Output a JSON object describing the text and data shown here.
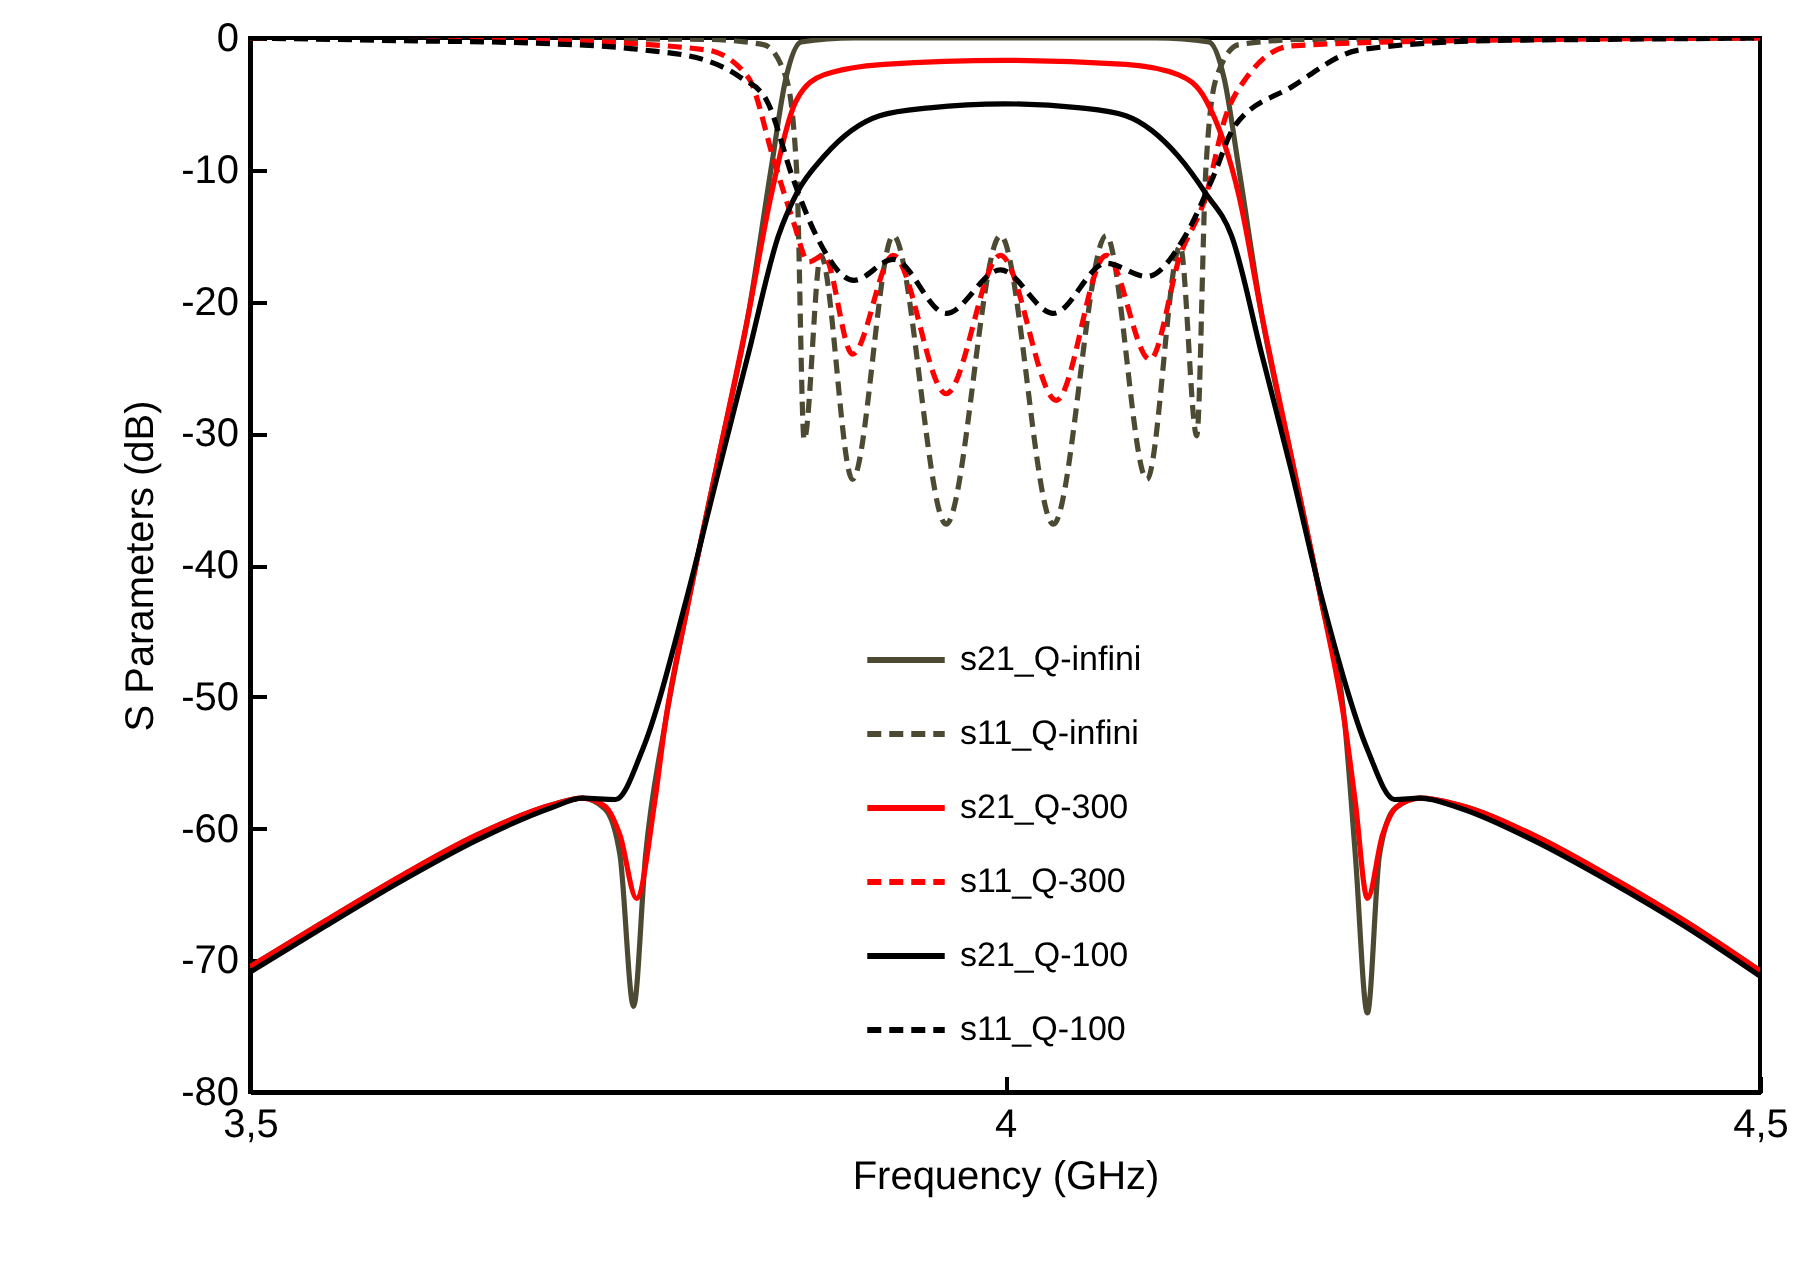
{
  "chart_data": {
    "type": "line",
    "xlabel": "Frequency (GHz)",
    "ylabel": "S Parameters (dB)",
    "xlim": [
      3.5,
      4.5
    ],
    "xticks": [
      {
        "value": 3.5,
        "label": "3,5"
      },
      4,
      {
        "value": 4.5,
        "label": "4,5"
      }
    ],
    "ylim": [
      -80,
      0
    ],
    "yticks": [
      -80,
      -70,
      -60,
      -50,
      -40,
      -30,
      -20,
      -10,
      0
    ],
    "grid": false,
    "legend": "bottom",
    "marker": "none",
    "series": [
      {
        "name": "s21_Q-infini",
        "color": "#4d4a33",
        "line_style": "solid",
        "x": [
          3.5,
          3.55,
          3.6,
          3.65,
          3.7,
          3.72,
          3.735,
          3.745,
          3.754,
          3.762,
          3.775,
          3.79,
          3.81,
          3.83,
          3.845,
          3.855,
          3.865,
          3.9,
          4.0,
          4.1,
          4.135,
          4.145,
          4.155,
          4.17,
          4.19,
          4.21,
          4.225,
          4.232,
          4.24,
          4.248,
          4.258,
          4.275,
          4.3,
          4.35,
          4.4,
          4.45,
          4.5
        ],
        "values": [
          -70.5,
          -67,
          -63.6,
          -60.5,
          -58.2,
          -57.7,
          -58.5,
          -62,
          -73.5,
          -62,
          -52,
          -43,
          -32,
          -21,
          -10,
          -3,
          -0.3,
          0,
          0,
          0,
          -0.3,
          -3,
          -10,
          -21,
          -32,
          -43,
          -52,
          -62,
          -74,
          -62,
          -58.5,
          -57.7,
          -58.2,
          -60.5,
          -63.6,
          -67,
          -70.8
        ]
      },
      {
        "name": "s11_Q-infini",
        "color": "#4d4a33",
        "line_style": "dashed",
        "x": [
          3.5,
          3.8,
          3.84,
          3.855,
          3.862,
          3.867,
          3.878,
          3.899,
          3.926,
          3.961,
          3.997,
          4.032,
          4.067,
          4.094,
          4.116,
          4.127,
          4.133,
          4.14,
          4.155,
          4.2,
          4.5
        ],
        "values": [
          0,
          -0.1,
          -0.5,
          -3,
          -10,
          -30.5,
          -16.5,
          -33.5,
          -15,
          -36.9,
          -15,
          -36.9,
          -15,
          -33.5,
          -15.8,
          -30.2,
          -10,
          -3,
          -0.5,
          -0.1,
          0
        ]
      },
      {
        "name": "s21_Q-300",
        "color": "#ff0000",
        "line_style": "solid",
        "x": [
          3.5,
          3.55,
          3.6,
          3.65,
          3.7,
          3.72,
          3.735,
          3.745,
          3.756,
          3.768,
          3.775,
          3.79,
          3.81,
          3.83,
          3.845,
          3.862,
          3.88,
          3.92,
          4.0,
          4.08,
          4.115,
          4.133,
          4.155,
          4.17,
          4.19,
          4.21,
          4.225,
          4.232,
          4.24,
          4.25,
          4.26,
          4.275,
          4.3,
          4.35,
          4.4,
          4.45,
          4.5
        ],
        "values": [
          -70.5,
          -67,
          -63.6,
          -60.5,
          -58.2,
          -57.7,
          -58.3,
          -60.5,
          -65.3,
          -58,
          -52,
          -43,
          -32,
          -21,
          -12,
          -4.7,
          -2.8,
          -2,
          -1.7,
          -2,
          -2.8,
          -4.7,
          -12,
          -21,
          -32,
          -43,
          -52,
          -58,
          -65.3,
          -60.5,
          -58.3,
          -57.7,
          -58.2,
          -60.5,
          -63.6,
          -67,
          -70.8
        ]
      },
      {
        "name": "s11_Q-300",
        "color": "#ff0000",
        "line_style": "dashed",
        "x": [
          3.5,
          3.7,
          3.802,
          3.83,
          3.847,
          3.86,
          3.87,
          3.88,
          3.899,
          3.926,
          3.961,
          3.997,
          4.034,
          4.067,
          4.096,
          4.116,
          4.133,
          4.146,
          4.16,
          4.19,
          4.3,
          4.5
        ],
        "values": [
          0,
          -0.2,
          -0.9,
          -3,
          -9.3,
          -14,
          -17,
          -16.5,
          -24,
          -16.5,
          -27,
          -16.5,
          -27.5,
          -16.5,
          -24.4,
          -16.5,
          -12,
          -6,
          -3,
          -0.6,
          -0.2,
          0
        ]
      },
      {
        "name": "s21_Q-100",
        "color": "#000000",
        "line_style": "solid",
        "x": [
          3.5,
          3.55,
          3.6,
          3.65,
          3.7,
          3.72,
          3.742,
          3.76,
          3.789,
          3.81,
          3.83,
          3.85,
          3.862,
          3.88,
          3.917,
          3.95,
          4.0,
          4.05,
          4.08,
          4.115,
          4.133,
          4.15,
          4.17,
          4.19,
          4.21,
          4.24,
          4.258,
          4.275,
          4.3,
          4.35,
          4.4,
          4.45,
          4.5
        ],
        "values": [
          -70.9,
          -67.4,
          -64,
          -60.9,
          -58.4,
          -57.7,
          -57.8,
          -54,
          -42.6,
          -33,
          -24,
          -15,
          -11.8,
          -9,
          -5.9,
          -5.3,
          -5,
          -5.3,
          -5.9,
          -9,
          -11.8,
          -15,
          -24,
          -33,
          -42.6,
          -54,
          -57.8,
          -57.7,
          -58.4,
          -60.9,
          -64,
          -67.4,
          -71.2
        ]
      },
      {
        "name": "s11_Q-100",
        "color": "#000000",
        "line_style": "dashed",
        "x": [
          3.5,
          3.6,
          3.69,
          3.76,
          3.802,
          3.825,
          3.842,
          3.86,
          3.875,
          3.9,
          3.926,
          3.961,
          3.997,
          4.032,
          4.067,
          4.094,
          4.12,
          4.138,
          4.152,
          4.19,
          4.235,
          4.32,
          4.4,
          4.5
        ],
        "values": [
          0,
          -0.2,
          -0.4,
          -0.9,
          -1.7,
          -3,
          -4.7,
          -10.8,
          -15,
          -18.4,
          -16.8,
          -20.9,
          -17.6,
          -20.9,
          -17.1,
          -18.1,
          -14.9,
          -10.5,
          -6.7,
          -3.7,
          -0.9,
          -0.2,
          -0.1,
          0
        ]
      }
    ]
  }
}
